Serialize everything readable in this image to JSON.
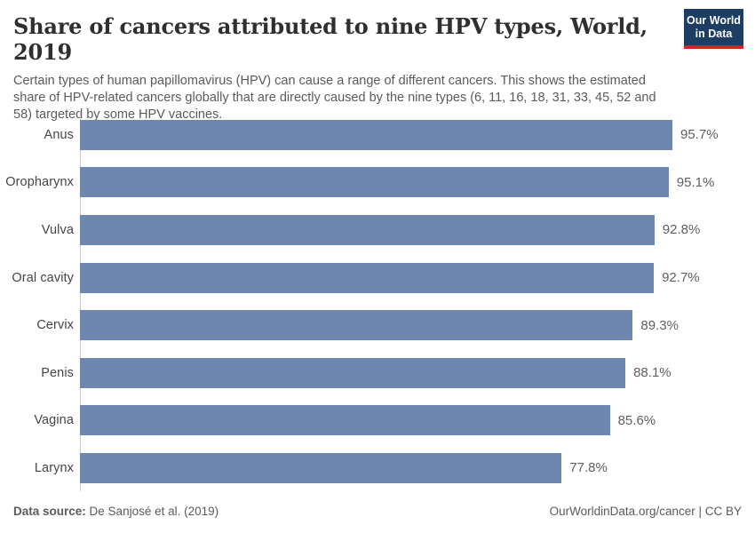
{
  "header": {
    "title": "Share of cancers attributed to nine HPV types, World, 2019",
    "subtitle": "Certain types of human papillomavirus (HPV) can cause a range of different cancers. This shows the estimated share of HPV-related cancers globally that are directly caused by the nine types (6, 11, 16, 18, 31, 33, 45, 52 and 58) targeted by some HPV vaccines.",
    "logo": {
      "line1": "Our World",
      "line2": "in Data",
      "bg_color": "#1d3d63",
      "accent_color": "#cf2428"
    }
  },
  "chart_data": {
    "type": "bar",
    "orientation": "horizontal",
    "title": "Share of cancers attributed to nine HPV types, World, 2019",
    "unit": "%",
    "categories": [
      "Anus",
      "Oropharynx",
      "Vulva",
      "Oral cavity",
      "Cervix",
      "Penis",
      "Vagina",
      "Larynx"
    ],
    "values": [
      95.7,
      95.1,
      92.8,
      92.7,
      89.3,
      88.1,
      85.6,
      77.8
    ],
    "value_labels": [
      "95.7%",
      "95.1%",
      "92.8%",
      "92.7%",
      "89.3%",
      "88.1%",
      "85.6%",
      "77.8%"
    ],
    "bar_color": "#6e87ae",
    "axis_line_color": "#cdcdcd",
    "xlim": [
      0,
      100
    ],
    "grid": false,
    "legend": "none",
    "value_label_position": "outside-end"
  },
  "footer": {
    "datasource_label": "Data source:",
    "datasource_value": "De Sanjosé et al. (2019)",
    "credit_text": "OurWorldinData.org/cancer | CC BY"
  }
}
